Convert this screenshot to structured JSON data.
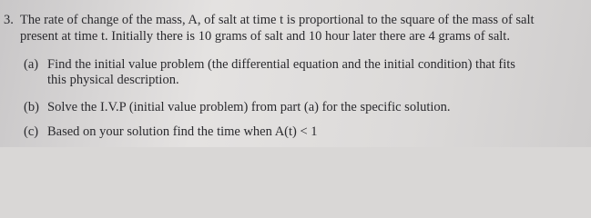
{
  "problem": {
    "number": "3.",
    "statement": [
      "The rate of change of the mass, A, of salt at time t is proportional to the square of the mass of salt",
      "present at time t. Initially there is 10 grams of salt and 10 hour later there are 4 grams of salt."
    ],
    "parts": [
      {
        "label": "(a)",
        "lines": [
          "Find the initial value problem (the differential equation and the initial condition) that fits",
          "this physical description."
        ]
      },
      {
        "label": "(b)",
        "lines": [
          "Solve the I.V.P (initial value problem) from part (a) for the specific solution."
        ]
      },
      {
        "label": "(c)",
        "lines": [
          "Based on your solution find the time when A(t) < 1"
        ]
      }
    ]
  }
}
